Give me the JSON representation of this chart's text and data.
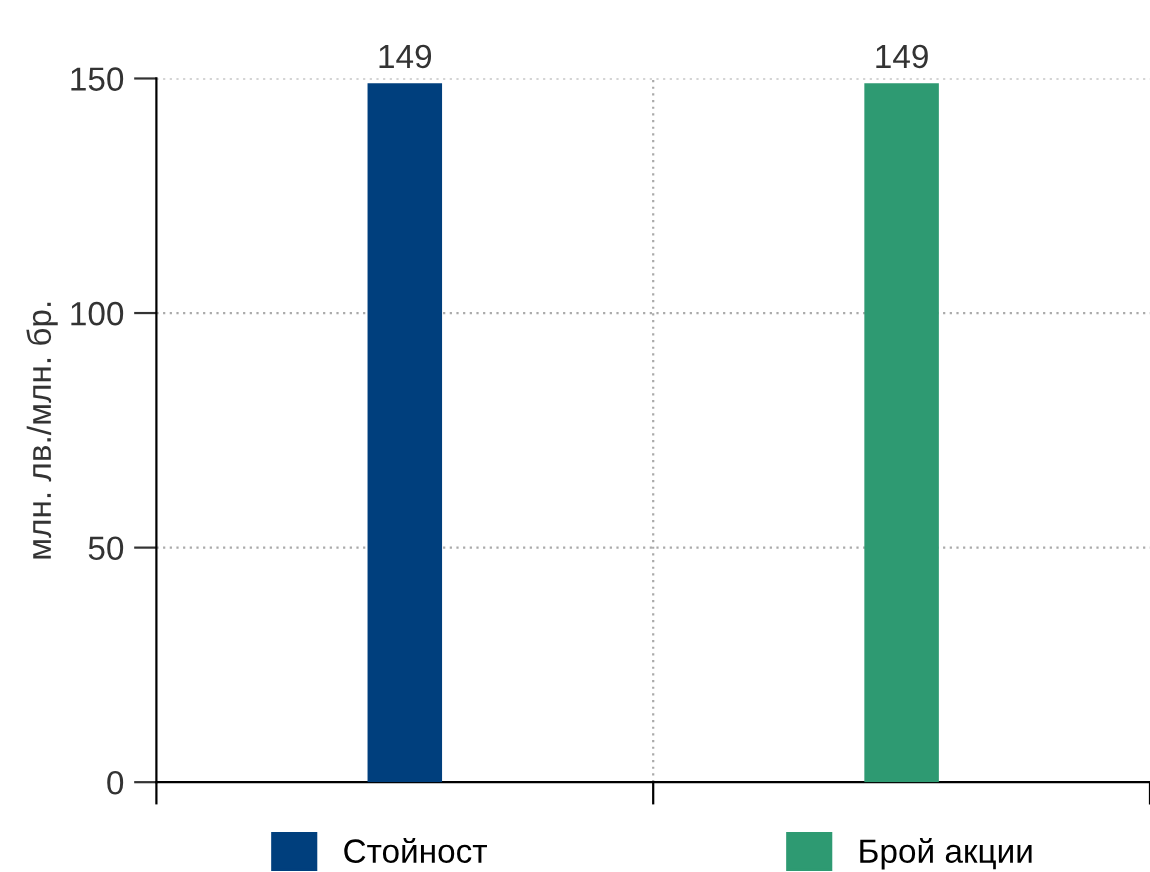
{
  "chart_data": {
    "type": "bar",
    "ylabel": "млн. лв./млн. бр.",
    "categories": [
      null,
      null
    ],
    "series": [
      {
        "name": "Стойност",
        "color": "#003f7d",
        "values": [
          149,
          null
        ]
      },
      {
        "name": "Брой акции",
        "color": "#2e9a72",
        "values": [
          null,
          149
        ]
      }
    ],
    "ylim": [
      0,
      150
    ],
    "yticks": [
      0,
      50,
      100,
      150
    ],
    "grid": true,
    "legend": "bottom",
    "data_labels": true
  }
}
